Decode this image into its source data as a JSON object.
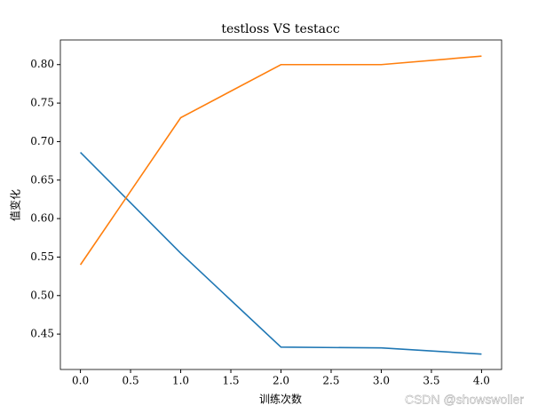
{
  "chart_data": {
    "type": "line",
    "title": "testloss VS testacc",
    "x_label": "训练次数",
    "y_label": "值变化",
    "x": [
      0,
      1,
      2,
      3,
      4
    ],
    "series": [
      {
        "color": "#1f77b4",
        "values": [
          0.686,
          0.555,
          0.433,
          0.432,
          0.424
        ]
      },
      {
        "color": "#ff7f0e",
        "values": [
          0.54,
          0.731,
          0.8,
          0.8,
          0.811
        ]
      }
    ],
    "xlim": [
      -0.2,
      4.2
    ],
    "xticks": [
      {
        "value": 0,
        "label": "0.0"
      },
      {
        "value": 0.5,
        "label": "0.5"
      },
      {
        "value": 1,
        "label": "1.0"
      },
      {
        "value": 1.5,
        "label": "1.5"
      },
      {
        "value": 2,
        "label": "2.0"
      },
      {
        "value": 2.5,
        "label": "2.5"
      },
      {
        "value": 3,
        "label": "3.0"
      },
      {
        "value": 3.5,
        "label": "3.5"
      },
      {
        "value": 4,
        "label": "4.0"
      }
    ],
    "ylim": [
      0.404,
      0.832
    ],
    "yticks": [
      0.45,
      {
        "value": 0.5,
        "label": "0.50"
      },
      0.55,
      {
        "value": 0.6,
        "label": "0.60"
      },
      0.65,
      {
        "value": 0.7,
        "label": "0.70"
      },
      0.75,
      {
        "value": 0.8,
        "label": "0.80"
      }
    ],
    "watermark": "CSDN @showswoller"
  }
}
